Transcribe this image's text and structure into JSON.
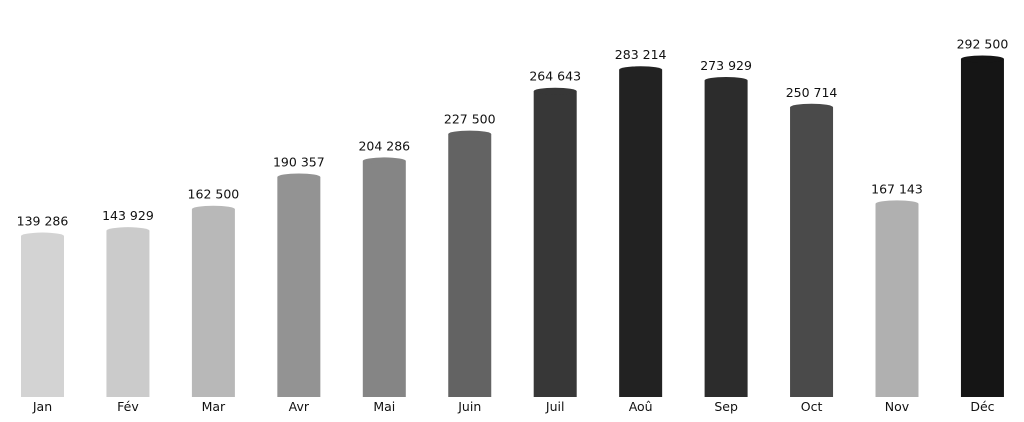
{
  "chart_data": {
    "type": "bar",
    "title": "",
    "xlabel": "",
    "ylabel": "",
    "categories": [
      "Jan",
      "Fév",
      "Mar",
      "Avr",
      "Mai",
      "Juin",
      "Juil",
      "Aoû",
      "Sep",
      "Oct",
      "Nov",
      "Déc"
    ],
    "values": [
      139286,
      143929,
      162500,
      190357,
      204286,
      227500,
      264643,
      283214,
      273929,
      250714,
      167143,
      292500
    ],
    "value_labels": [
      "139 286",
      "143 929",
      "162 500",
      "190 357",
      "204 286",
      "227 500",
      "264 643",
      "283 214",
      "273 929",
      "250 714",
      "167 143",
      "292 500"
    ],
    "colors": [
      "#d3d3d3",
      "#cbcbcb",
      "#b8b8b8",
      "#939393",
      "#858585",
      "#636363",
      "#373737",
      "#222222",
      "#2c2c2c",
      "#4a4a4a",
      "#b0b0b0",
      "#151515"
    ],
    "ylim": [
      0,
      292500
    ],
    "grid": false,
    "legend": "none"
  }
}
